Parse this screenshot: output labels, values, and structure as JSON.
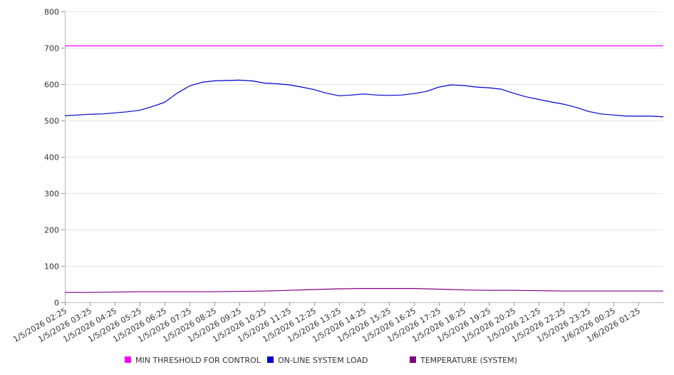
{
  "chart_data": {
    "type": "line",
    "title": "",
    "xlabel": "",
    "ylabel": "",
    "ylim": [
      0,
      800
    ],
    "y_ticks": [
      0,
      100,
      200,
      300,
      400,
      500,
      600,
      700,
      800
    ],
    "grid": "horizontal",
    "legend_position": "bottom",
    "x_start": "1/5/2026 02:25",
    "x_end": "1/6/2026 02:25",
    "x_tick_labels": [
      "1/5/2026 02:25",
      "1/5/2026 03:25",
      "1/5/2026 04:25",
      "1/5/2026 05:25",
      "1/5/2026 06:25",
      "1/5/2026 07:25",
      "1/5/2026 08:25",
      "1/5/2026 09:25",
      "1/5/2026 10:25",
      "1/5/2026 11:25",
      "1/5/2026 12:25",
      "1/5/2026 13:25",
      "1/5/2026 14:25",
      "1/5/2026 15:25",
      "1/5/2026 16:25",
      "1/5/2026 17:25",
      "1/5/2026 18:25",
      "1/5/2026 19:25",
      "1/5/2026 20:25",
      "1/5/2026 21:25",
      "1/5/2026 22:25",
      "1/5/2026 23:25",
      "1/6/2026 00:25",
      "1/6/2026 01:25"
    ],
    "series": [
      {
        "name": "MIN THRESHOLD FOR CONTROL",
        "color": "#ff00ff",
        "x": [
          "1/5/2026 02:25",
          "1/6/2026 02:25"
        ],
        "values": [
          705,
          705
        ]
      },
      {
        "name": "ON-LINE SYSTEM LOAD",
        "color": "#0000cc",
        "x": [
          "1/5/2026 02:25",
          "1/5/2026 02:55",
          "1/5/2026 03:25",
          "1/5/2026 03:55",
          "1/5/2026 04:25",
          "1/5/2026 04:55",
          "1/5/2026 05:25",
          "1/5/2026 05:55",
          "1/5/2026 06:25",
          "1/5/2026 06:55",
          "1/5/2026 07:25",
          "1/5/2026 07:55",
          "1/5/2026 08:25",
          "1/5/2026 08:55",
          "1/5/2026 09:25",
          "1/5/2026 09:55",
          "1/5/2026 10:25",
          "1/5/2026 10:55",
          "1/5/2026 11:25",
          "1/5/2026 11:55",
          "1/5/2026 12:25",
          "1/5/2026 12:55",
          "1/5/2026 13:25",
          "1/5/2026 13:55",
          "1/5/2026 14:25",
          "1/5/2026 14:55",
          "1/5/2026 15:25",
          "1/5/2026 15:55",
          "1/5/2026 16:25",
          "1/5/2026 16:55",
          "1/5/2026 17:25",
          "1/5/2026 17:55",
          "1/5/2026 18:25",
          "1/5/2026 18:55",
          "1/5/2026 19:25",
          "1/5/2026 19:55",
          "1/5/2026 20:25",
          "1/5/2026 20:55",
          "1/5/2026 21:25",
          "1/5/2026 21:55",
          "1/5/2026 22:25",
          "1/5/2026 22:55",
          "1/5/2026 23:25",
          "1/5/2026 23:55",
          "1/6/2026 00:25",
          "1/6/2026 00:55",
          "1/6/2026 01:25",
          "1/6/2026 01:55",
          "1/6/2026 02:25"
        ],
        "values": [
          513,
          515,
          517,
          518,
          521,
          524,
          528,
          538,
          550,
          575,
          595,
          605,
          609,
          610,
          611,
          609,
          603,
          601,
          598,
          592,
          585,
          575,
          568,
          570,
          573,
          570,
          569,
          570,
          574,
          580,
          592,
          598,
          596,
          592,
          590,
          586,
          575,
          565,
          558,
          551,
          545,
          536,
          525,
          518,
          515,
          512,
          512,
          512,
          510
        ]
      },
      {
        "name": "TEMPERATURE (SYSTEM)",
        "color": "#800080",
        "x": [
          "1/5/2026 02:25",
          "1/5/2026 03:25",
          "1/5/2026 04:25",
          "1/5/2026 05:25",
          "1/5/2026 06:25",
          "1/5/2026 07:25",
          "1/5/2026 08:25",
          "1/5/2026 09:25",
          "1/5/2026 10:25",
          "1/5/2026 11:25",
          "1/5/2026 12:25",
          "1/5/2026 13:25",
          "1/5/2026 14:25",
          "1/5/2026 15:25",
          "1/5/2026 16:25",
          "1/5/2026 17:25",
          "1/5/2026 18:25",
          "1/5/2026 19:25",
          "1/5/2026 20:25",
          "1/5/2026 21:25",
          "1/5/2026 22:25",
          "1/5/2026 23:25",
          "1/6/2026 00:25",
          "1/6/2026 01:25",
          "1/6/2026 02:25"
        ],
        "values": [
          27,
          27,
          28,
          29,
          29,
          29,
          29,
          30,
          31,
          33,
          35,
          37,
          38,
          38,
          38,
          36,
          34,
          33,
          33,
          32,
          31,
          31,
          31,
          31,
          31
        ]
      }
    ]
  }
}
